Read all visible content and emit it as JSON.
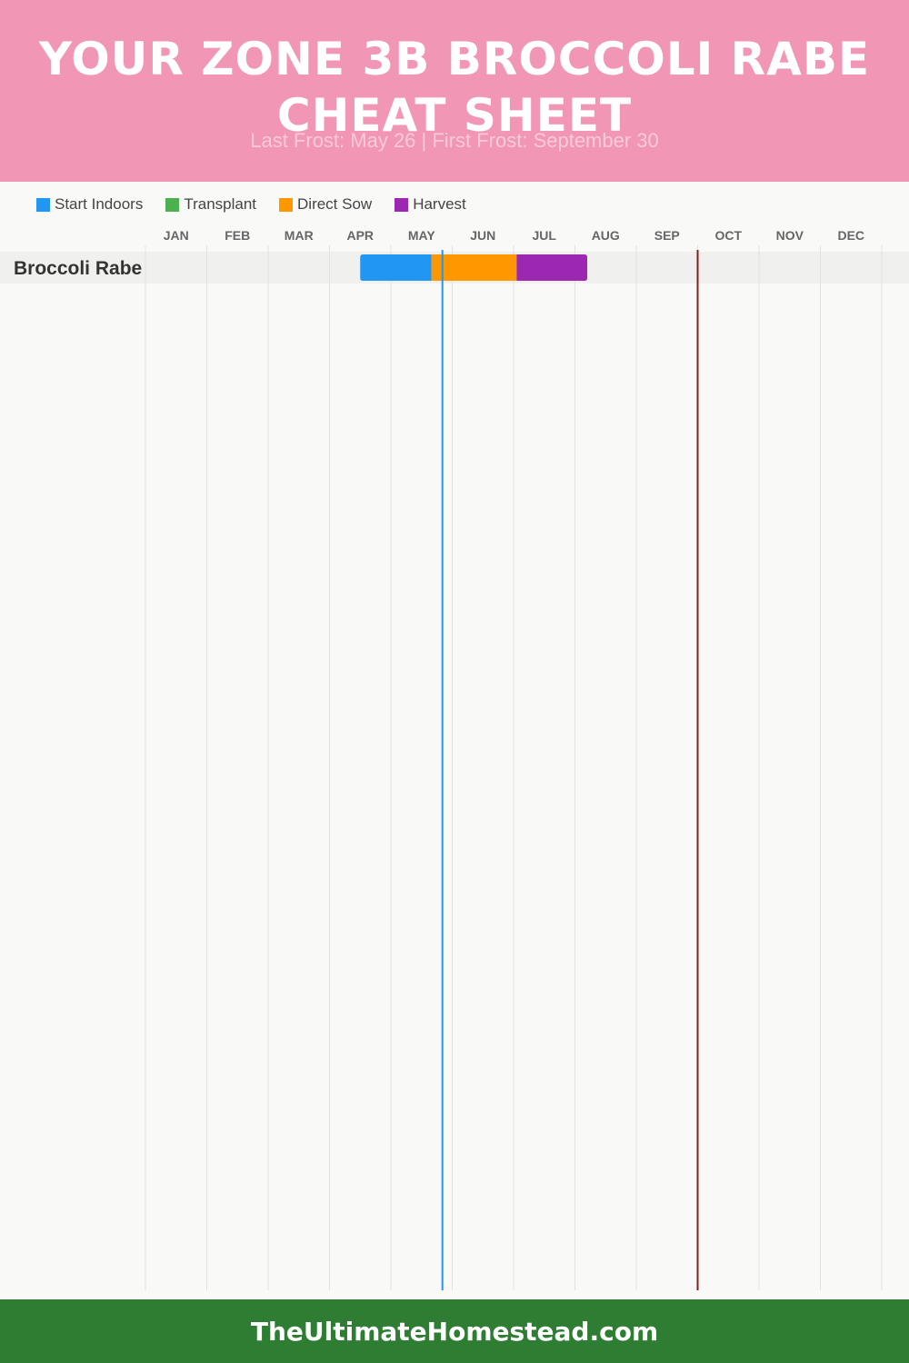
{
  "header": {
    "title": "YOUR ZONE 3B BROCCOLI RABE CHEAT SHEET",
    "subtitle": "Last Frost: May 26 | First Frost: September 30",
    "background": "#f196b4"
  },
  "legend": [
    {
      "label": "Start Indoors",
      "color": "#2196f3"
    },
    {
      "label": "Transplant",
      "color": "#4caf50"
    },
    {
      "label": "Direct Sow",
      "color": "#ff9800"
    },
    {
      "label": "Harvest",
      "color": "#9c27b0"
    }
  ],
  "chart_data": {
    "type": "gantt",
    "months": [
      "JAN",
      "FEB",
      "MAR",
      "APR",
      "MAY",
      "JUN",
      "JUL",
      "AUG",
      "SEP",
      "OCT",
      "NOV",
      "DEC"
    ],
    "rows": [
      {
        "label": "Broccoli Rabe",
        "segments": [
          {
            "phase": "Start Indoors",
            "start": "Apr 15",
            "end": "May 15",
            "start_month": 3.5,
            "end_month": 4.66,
            "color": "#2196f3"
          },
          {
            "phase": "Direct Sow",
            "start": "May 15",
            "end": "Jun 30",
            "start_month": 4.66,
            "end_month": 6.05,
            "color": "#ff9800"
          },
          {
            "phase": "Harvest",
            "start": "Jul 1",
            "end": "Aug 1",
            "start_month": 6.05,
            "end_month": 7.2,
            "color": "#9c27b0"
          }
        ]
      }
    ],
    "frost_lines": [
      {
        "name": "Last Frost",
        "date": "May 26",
        "month": 4.84,
        "color": "#2196f3"
      },
      {
        "name": "First Frost",
        "date": "September 30",
        "month": 9.0,
        "color": "#8b1a1a"
      }
    ],
    "grid": true
  },
  "footer": {
    "text": "TheUltimateHomestead.com",
    "background": "#2e7d32"
  }
}
